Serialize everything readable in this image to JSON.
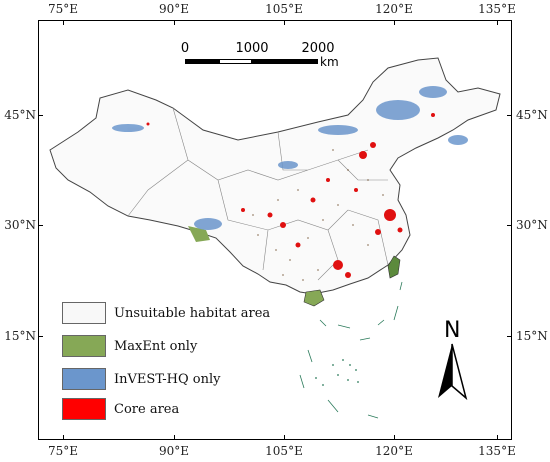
{
  "longitudes": [
    {
      "label": "75°E",
      "value": 75
    },
    {
      "label": "90°E",
      "value": 90
    },
    {
      "label": "105°E",
      "value": 105
    },
    {
      "label": "120°E",
      "value": 120
    },
    {
      "label": "135°E",
      "value": 135
    }
  ],
  "latitudes": [
    {
      "label": "45°N",
      "value": 45
    },
    {
      "label": "30°N",
      "value": 30
    },
    {
      "label": "15°N",
      "value": 15
    }
  ],
  "scale_bar": {
    "labels": [
      "0",
      "1000",
      "2000"
    ],
    "unit": "km"
  },
  "north_arrow": {
    "letter": "N"
  },
  "legend": [
    {
      "label": "Unsuitable habitat area",
      "color": "#f8f8f8"
    },
    {
      "label": "MaxEnt only",
      "color": "#86a856"
    },
    {
      "label": "InVEST-HQ only",
      "color": "#6b96cc"
    },
    {
      "label": "Core area",
      "color": "#ff0000"
    }
  ]
}
